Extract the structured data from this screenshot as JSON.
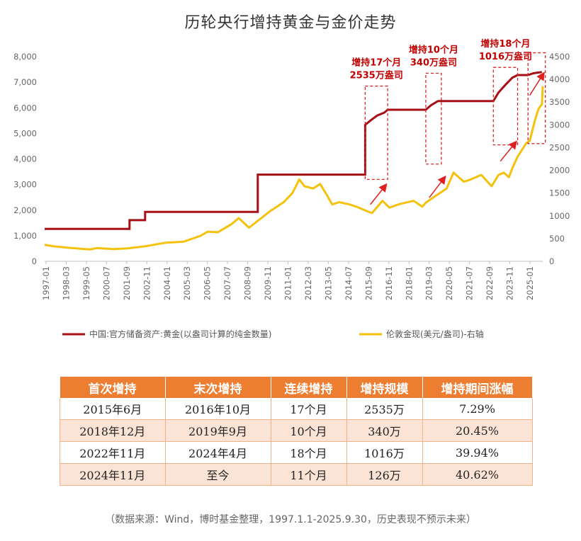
{
  "title": "历轮央行增持黄金与金价走势",
  "source": "（数据来源：Wind，博时基金整理，1997.1.1-2025.9.30，历史表现不预示未来）",
  "colors": {
    "holdings": "#a50f15",
    "price": "#f4c20d",
    "accent": "#ed7d31",
    "annotation": "#c00000"
  },
  "chart_data": {
    "type": "line",
    "x_tick_labels": [
      "1997-01",
      "1998-03",
      "1999-05",
      "2000-07",
      "2001-09",
      "2002-11",
      "2004-01",
      "2005-03",
      "2006-05",
      "2007-07",
      "2008-09",
      "2009-11",
      "2011-01",
      "2012-03",
      "2013-05",
      "2014-07",
      "2015-09",
      "2016-11",
      "2018-01",
      "2019-03",
      "2020-05",
      "2021-07",
      "2022-09",
      "2023-11",
      "2025-01"
    ],
    "y_left": {
      "ticks": [
        "0",
        "1,000",
        "2,000",
        "3,000",
        "4,000",
        "5,000",
        "6,000",
        "7,000",
        "8,000"
      ],
      "range": [
        0,
        8000
      ]
    },
    "y_right": {
      "ticks": [
        "0",
        "500",
        "1000",
        "1500",
        "2000",
        "2500",
        "3000",
        "3500",
        "4000",
        "4500"
      ],
      "range": [
        0,
        4500
      ]
    },
    "series": [
      {
        "name": "中国:官方储备资产:黄金(以盎司计算的纯金数量)",
        "axis": "left",
        "points": [
          [
            1997.0,
            1267
          ],
          [
            2001.9,
            1267
          ],
          [
            2001.9,
            1608
          ],
          [
            2002.8,
            1608
          ],
          [
            2002.8,
            1929
          ],
          [
            2009.3,
            1929
          ],
          [
            2009.3,
            3389
          ],
          [
            2015.5,
            3389
          ],
          [
            2015.5,
            5332
          ],
          [
            2015.8,
            5500
          ],
          [
            2016.2,
            5700
          ],
          [
            2016.6,
            5810
          ],
          [
            2016.8,
            5924
          ],
          [
            2019.0,
            5924
          ],
          [
            2019.3,
            6100
          ],
          [
            2019.7,
            6264
          ],
          [
            2022.9,
            6264
          ],
          [
            2023.2,
            6600
          ],
          [
            2023.6,
            6900
          ],
          [
            2024.0,
            7180
          ],
          [
            2024.3,
            7280
          ],
          [
            2024.9,
            7280
          ],
          [
            2025.2,
            7350
          ],
          [
            2025.7,
            7400
          ]
        ]
      },
      {
        "name": "伦敦金现(美元/盎司)-右轴",
        "axis": "right",
        "points": [
          [
            1997.0,
            365
          ],
          [
            1997.5,
            330
          ],
          [
            1998.5,
            295
          ],
          [
            1999.6,
            260
          ],
          [
            2000.0,
            290
          ],
          [
            2001.0,
            270
          ],
          [
            2001.8,
            285
          ],
          [
            2002.8,
            330
          ],
          [
            2004.0,
            410
          ],
          [
            2005.0,
            430
          ],
          [
            2006.0,
            560
          ],
          [
            2006.4,
            650
          ],
          [
            2007.0,
            640
          ],
          [
            2007.8,
            820
          ],
          [
            2008.2,
            950
          ],
          [
            2008.8,
            740
          ],
          [
            2009.5,
            950
          ],
          [
            2010.0,
            1100
          ],
          [
            2010.8,
            1300
          ],
          [
            2011.3,
            1500
          ],
          [
            2011.7,
            1800
          ],
          [
            2012.0,
            1650
          ],
          [
            2012.5,
            1600
          ],
          [
            2012.9,
            1700
          ],
          [
            2013.3,
            1450
          ],
          [
            2013.6,
            1250
          ],
          [
            2014.0,
            1300
          ],
          [
            2014.6,
            1250
          ],
          [
            2015.0,
            1200
          ],
          [
            2015.5,
            1120
          ],
          [
            2015.9,
            1060
          ],
          [
            2016.5,
            1330
          ],
          [
            2016.9,
            1180
          ],
          [
            2017.5,
            1260
          ],
          [
            2018.3,
            1330
          ],
          [
            2018.8,
            1200
          ],
          [
            2019.0,
            1290
          ],
          [
            2019.5,
            1420
          ],
          [
            2020.2,
            1600
          ],
          [
            2020.6,
            1950
          ],
          [
            2020.9,
            1850
          ],
          [
            2021.2,
            1750
          ],
          [
            2021.6,
            1800
          ],
          [
            2022.2,
            1900
          ],
          [
            2022.8,
            1650
          ],
          [
            2023.2,
            1900
          ],
          [
            2023.5,
            1950
          ],
          [
            2023.8,
            1850
          ],
          [
            2024.0,
            2050
          ],
          [
            2024.3,
            2300
          ],
          [
            2024.8,
            2600
          ],
          [
            2025.0,
            2650
          ],
          [
            2025.3,
            3100
          ],
          [
            2025.5,
            3350
          ],
          [
            2025.7,
            3450
          ],
          [
            2025.75,
            3850
          ]
        ]
      }
    ],
    "annotations": [
      {
        "line1": "增持17个月",
        "line2": "2535万盎司",
        "box": [
          2015.5,
          2016.8
        ],
        "y_range": [
          3200,
          6850
        ]
      },
      {
        "line1": "增持10个月",
        "line2": "340万盎司",
        "box": [
          2019.0,
          2019.9
        ],
        "y_range": [
          3800,
          7350
        ]
      },
      {
        "line1": "增持18个月",
        "line2": "1016万盎司",
        "box": [
          2022.9,
          2024.3
        ],
        "y_range": [
          4550,
          7580
        ]
      },
      {
        "line1": "",
        "line2": "",
        "box": [
          2024.9,
          2025.9
        ],
        "y_range": [
          4600,
          8150
        ]
      }
    ],
    "arrows": [
      {
        "from": [
          2015.8,
          1250
        ],
        "to": [
          2016.7,
          1680
        ]
      },
      {
        "from": [
          2019.2,
          1400
        ],
        "to": [
          2020.1,
          1850
        ]
      },
      {
        "from": [
          2023.3,
          2200
        ],
        "to": [
          2024.2,
          2620
        ]
      },
      {
        "from": [
          2025.0,
          3650
        ],
        "to": [
          2025.8,
          4130
        ]
      }
    ]
  },
  "table": {
    "headers": [
      "首次增持",
      "末次增持",
      "连续增持",
      "增持规模",
      "增持期间涨幅"
    ],
    "rows": [
      [
        "2015年6月",
        "2016年10月",
        "17个月",
        "2535万",
        "7.29%"
      ],
      [
        "2018年12月",
        "2019年9月",
        "10个月",
        "340万",
        "20.45%"
      ],
      [
        "2022年11月",
        "2024年4月",
        "18个月",
        "1016万",
        "39.94%"
      ],
      [
        "2024年11月",
        "至今",
        "11个月",
        "126万",
        "40.62%"
      ]
    ]
  }
}
